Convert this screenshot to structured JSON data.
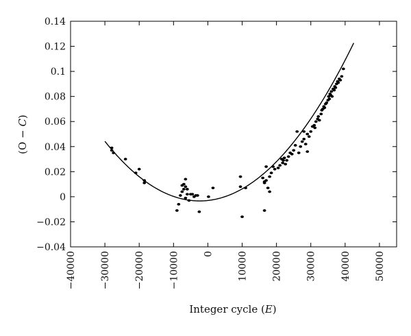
{
  "chart_data": {
    "type": "scatter",
    "title": "",
    "xlabel_prefix": "Integer cycle (",
    "xlabel_var": "E",
    "xlabel_suffix": ")",
    "ylabel_prefix": "(O − ",
    "ylabel_var": "C",
    "ylabel_suffix": ")",
    "xlim": [
      -40000,
      55000
    ],
    "ylim": [
      -0.04,
      0.14
    ],
    "xticks": [
      -40000,
      -30000,
      -20000,
      -10000,
      0,
      10000,
      20000,
      30000,
      40000,
      50000
    ],
    "xtick_labels": [
      "−40000",
      "−30000",
      "−20000",
      "−10000",
      "0",
      "10000",
      "20000",
      "30000",
      "40000",
      "50000"
    ],
    "yticks": [
      -0.04,
      -0.02,
      0,
      0.02,
      0.04,
      0.06,
      0.08,
      0.1,
      0.12,
      0.14
    ],
    "ytick_labels": [
      "−0.04",
      "−0.02",
      "0",
      "0.02",
      "0.04",
      "0.06",
      "0.08",
      "0.1",
      "0.12",
      "0.14"
    ],
    "grid": false,
    "legend": "none",
    "series": [
      {
        "kind": "points",
        "color": "#000000",
        "points": [
          [
            -28000,
            0.039
          ],
          [
            -28000,
            0.037
          ],
          [
            -27500,
            0.035
          ],
          [
            -24000,
            0.03
          ],
          [
            -20000,
            0.022
          ],
          [
            -21000,
            0.019
          ],
          [
            -18500,
            0.013
          ],
          [
            -18500,
            0.011
          ],
          [
            -9000,
            -0.011
          ],
          [
            -8500,
            -0.006
          ],
          [
            -8000,
            0.001
          ],
          [
            -7500,
            0.009
          ],
          [
            -7500,
            0.004
          ],
          [
            -7000,
            0.01
          ],
          [
            -7000,
            0.006
          ],
          [
            -6500,
            0.014
          ],
          [
            -6500,
            0.008
          ],
          [
            -6500,
            -0.001
          ],
          [
            -6000,
            0.006
          ],
          [
            -6000,
            0.002
          ],
          [
            -5500,
            -0.003
          ],
          [
            -5000,
            0.002
          ],
          [
            -4500,
            0.002
          ],
          [
            -4000,
            0.0
          ],
          [
            -3500,
            0.001
          ],
          [
            -3000,
            0.001
          ],
          [
            -2500,
            -0.012
          ],
          [
            200,
            0.0
          ],
          [
            1500,
            0.007
          ],
          [
            9500,
            0.016
          ],
          [
            9500,
            0.008
          ],
          [
            10000,
            -0.016
          ],
          [
            11000,
            0.007
          ],
          [
            16000,
            0.015
          ],
          [
            16500,
            0.012
          ],
          [
            16500,
            0.011
          ],
          [
            16500,
            -0.011
          ],
          [
            17000,
            0.013
          ],
          [
            17000,
            0.024
          ],
          [
            17500,
            0.007
          ],
          [
            18000,
            0.016
          ],
          [
            18000,
            0.004
          ],
          [
            18500,
            0.019
          ],
          [
            19000,
            0.024
          ],
          [
            19500,
            0.022
          ],
          [
            20500,
            0.023
          ],
          [
            21000,
            0.025
          ],
          [
            21500,
            0.03
          ],
          [
            21800,
            0.027
          ],
          [
            22000,
            0.029
          ],
          [
            22300,
            0.031
          ],
          [
            22600,
            0.026
          ],
          [
            23000,
            0.029
          ],
          [
            23500,
            0.032
          ],
          [
            24000,
            0.035
          ],
          [
            24500,
            0.034
          ],
          [
            25000,
            0.037
          ],
          [
            25500,
            0.041
          ],
          [
            26000,
            0.052
          ],
          [
            26500,
            0.035
          ],
          [
            27000,
            0.04
          ],
          [
            27500,
            0.044
          ],
          [
            28000,
            0.046
          ],
          [
            28000,
            0.052
          ],
          [
            28500,
            0.042
          ],
          [
            29000,
            0.05
          ],
          [
            29000,
            0.036
          ],
          [
            29500,
            0.048
          ],
          [
            30000,
            0.052
          ],
          [
            30500,
            0.056
          ],
          [
            31000,
            0.057
          ],
          [
            31200,
            0.055
          ],
          [
            31500,
            0.06
          ],
          [
            32000,
            0.062
          ],
          [
            32200,
            0.064
          ],
          [
            32500,
            0.061
          ],
          [
            33000,
            0.066
          ],
          [
            33200,
            0.069
          ],
          [
            33500,
            0.07
          ],
          [
            33800,
            0.072
          ],
          [
            34000,
            0.071
          ],
          [
            34300,
            0.074
          ],
          [
            34600,
            0.075
          ],
          [
            35000,
            0.077
          ],
          [
            35200,
            0.08
          ],
          [
            35400,
            0.078
          ],
          [
            35600,
            0.082
          ],
          [
            35800,
            0.081
          ],
          [
            36000,
            0.084
          ],
          [
            36200,
            0.08
          ],
          [
            36500,
            0.086
          ],
          [
            36800,
            0.085
          ],
          [
            37000,
            0.088
          ],
          [
            37200,
            0.087
          ],
          [
            37500,
            0.09
          ],
          [
            37800,
            0.092
          ],
          [
            38000,
            0.091
          ],
          [
            38300,
            0.094
          ],
          [
            38600,
            0.093
          ],
          [
            39000,
            0.096
          ],
          [
            39500,
            0.102
          ]
        ]
      },
      {
        "kind": "fit-curve",
        "color": "#000000",
        "form": "quadratic",
        "coefficients": [
          -0.003,
          3e-07,
          6.25e-11
        ],
        "x_range": [
          -30000,
          42500
        ]
      }
    ]
  }
}
